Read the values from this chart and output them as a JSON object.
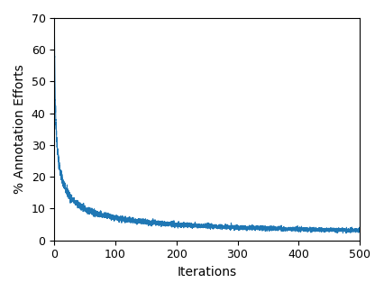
{
  "title": "",
  "xlabel": "Iterations",
  "ylabel": "% Annotation Efforts",
  "xlim": [
    0,
    500
  ],
  "ylim": [
    0,
    70
  ],
  "yticks": [
    0,
    10,
    20,
    30,
    40,
    50,
    60,
    70
  ],
  "xticks": [
    0,
    100,
    200,
    300,
    400,
    500
  ],
  "line_color": "#1f77b4",
  "line_width": 0.8,
  "noise_seed": 42,
  "n_points": 5000,
  "A": 71.0,
  "B": 0.2,
  "noise_scale": 0.15,
  "background_color": "#ffffff"
}
